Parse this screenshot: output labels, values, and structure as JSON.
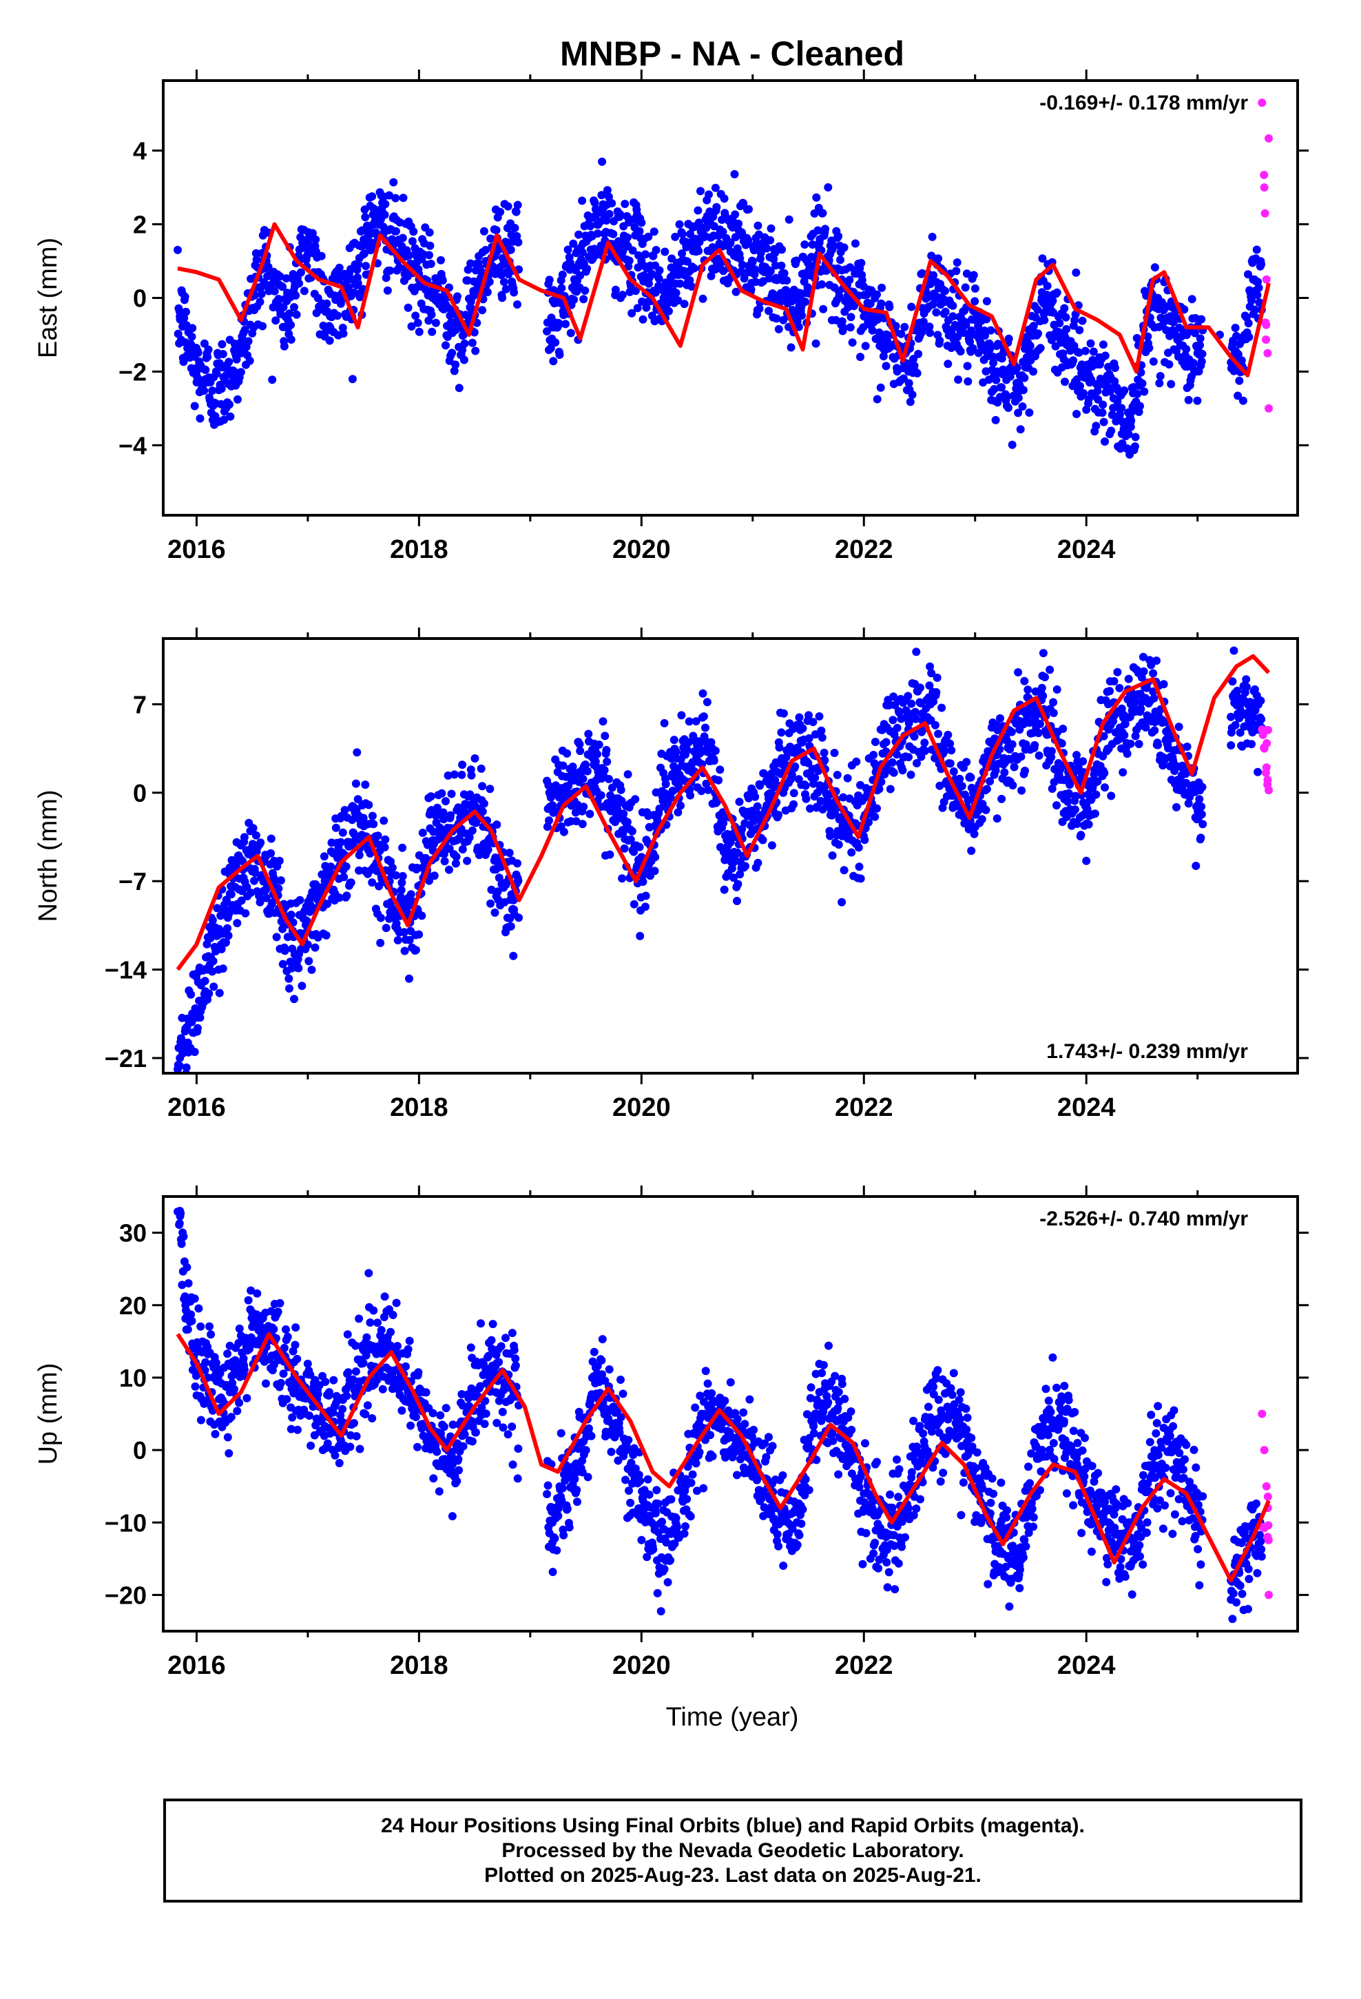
{
  "title": "MNBP  - NA - Cleaned",
  "xlabel": "Time (year)",
  "colors": {
    "final": "#0000ff",
    "rapid": "#ff22ff",
    "fit": "#ff0000",
    "axis": "#000000"
  },
  "caption": [
    "24 Hour Positions Using Final Orbits (blue) and Rapid Orbits (magenta).",
    "Processed by the Nevada Geodetic Laboratory.",
    "Plotted on 2025-Aug-23. Last data on 2025-Aug-21."
  ],
  "chart_data": [
    {
      "type": "scatter",
      "component": "east",
      "ylabel": "East (mm)",
      "rate": "-0.169+/- 0.178 mm/yr",
      "rate_position": "top-right",
      "xlim": [
        2015.7,
        2025.9
      ],
      "ylim": [
        -5.9,
        5.9
      ],
      "xticks": [
        2016,
        2018,
        2020,
        2022,
        2024
      ],
      "xtick_labels": [
        "2016",
        "2018",
        "2020",
        "2022",
        "2024"
      ],
      "yticks": [
        -4,
        -2,
        0,
        2,
        4
      ],
      "ytick_labels": [
        "−4",
        "−2",
        "0",
        "2",
        "4"
      ],
      "data_start": 2015.83,
      "data_end": 2025.64,
      "series": [
        {
          "kind": "final",
          "x": [
            2015.85,
            2016.0,
            2016.2,
            2016.4,
            2016.6,
            2016.8,
            2017.0,
            2017.2,
            2017.4,
            2017.6,
            2017.8,
            2018.0,
            2018.2,
            2018.4,
            2018.6,
            2018.8,
            2019.2,
            2019.4,
            2019.6,
            2019.8,
            2020.0,
            2020.2,
            2020.4,
            2020.6,
            2020.8,
            2021.0,
            2021.2,
            2021.4,
            2021.6,
            2021.8,
            2022.0,
            2022.2,
            2022.4,
            2022.6,
            2022.8,
            2023.0,
            2023.2,
            2023.4,
            2023.6,
            2023.8,
            2024.0,
            2024.2,
            2024.4,
            2024.6,
            2024.8,
            2025.0,
            2025.2,
            2025.4,
            2025.5
          ],
          "y": [
            -0.5,
            -2.0,
            -2.5,
            -1.5,
            1.0,
            -0.5,
            1.5,
            -0.5,
            0.5,
            2.0,
            1.5,
            0.5,
            0.0,
            -1.0,
            1.0,
            1.5,
            -0.8,
            0.5,
            2.0,
            1.5,
            1.0,
            0.0,
            1.0,
            2.0,
            1.5,
            1.0,
            0.5,
            0.0,
            1.5,
            0.5,
            -0.5,
            -1.0,
            -2.0,
            0.5,
            -0.5,
            -1.0,
            -2.0,
            -2.5,
            0.0,
            -1.0,
            -2.0,
            -2.5,
            -3.5,
            0.0,
            -1.0,
            -1.5,
            -1.0,
            -2.0,
            0.5
          ]
        },
        {
          "kind": "rapid",
          "x": [
            2025.58,
            2025.6,
            2025.62,
            2025.63,
            2025.64
          ],
          "y": [
            5.3,
            3.0,
            0.5,
            -1.5,
            -3.0
          ]
        },
        {
          "kind": "fit",
          "x": [
            2015.83,
            2016.0,
            2016.2,
            2016.4,
            2016.6,
            2016.7,
            2016.9,
            2017.1,
            2017.3,
            2017.45,
            2017.65,
            2017.85,
            2018.05,
            2018.25,
            2018.45,
            2018.7,
            2018.9,
            2019.1,
            2019.3,
            2019.45,
            2019.7,
            2019.9,
            2020.1,
            2020.35,
            2020.55,
            2020.7,
            2020.9,
            2021.1,
            2021.3,
            2021.45,
            2021.6,
            2021.8,
            2022.0,
            2022.2,
            2022.35,
            2022.6,
            2022.75,
            2022.95,
            2023.15,
            2023.35,
            2023.55,
            2023.7,
            2023.9,
            2024.1,
            2024.3,
            2024.45,
            2024.6,
            2024.7,
            2024.9,
            2025.1,
            2025.3,
            2025.45,
            2025.64
          ],
          "y": [
            0.8,
            0.7,
            0.5,
            -0.6,
            1.0,
            2.0,
            1.0,
            0.5,
            0.3,
            -0.8,
            1.7,
            1.0,
            0.4,
            0.2,
            -1.0,
            1.7,
            0.5,
            0.2,
            0.0,
            -1.1,
            1.5,
            0.5,
            0.0,
            -1.3,
            0.9,
            1.3,
            0.2,
            -0.1,
            -0.3,
            -1.4,
            1.2,
            0.4,
            -0.3,
            -0.4,
            -1.7,
            1.0,
            0.6,
            -0.2,
            -0.5,
            -1.8,
            0.5,
            0.9,
            -0.3,
            -0.6,
            -1.0,
            -2.0,
            0.5,
            0.7,
            -0.8,
            -0.8,
            -1.6,
            -2.1,
            0.4
          ]
        }
      ]
    },
    {
      "type": "scatter",
      "component": "north",
      "ylabel": "North (mm)",
      "rate": "1.743+/- 0.239 mm/yr",
      "rate_position": "bottom-right",
      "xlim": [
        2015.7,
        2025.9
      ],
      "ylim": [
        -22.2,
        12.2
      ],
      "xticks": [
        2016,
        2018,
        2020,
        2022,
        2024
      ],
      "xtick_labels": [
        "2016",
        "2018",
        "2020",
        "2022",
        "2024"
      ],
      "yticks": [
        -21,
        -14,
        -7,
        0,
        7
      ],
      "ytick_labels": [
        "−21",
        "−14",
        "−7",
        "0",
        "7"
      ],
      "data_start": 2015.83,
      "data_end": 2025.64,
      "series": [
        {
          "kind": "final",
          "x": [
            2015.85,
            2015.95,
            2016.1,
            2016.3,
            2016.5,
            2016.7,
            2016.9,
            2017.1,
            2017.3,
            2017.5,
            2017.7,
            2017.9,
            2018.1,
            2018.3,
            2018.5,
            2018.7,
            2018.85,
            2019.2,
            2019.4,
            2019.6,
            2019.8,
            2020.0,
            2020.2,
            2020.4,
            2020.6,
            2020.8,
            2021.0,
            2021.2,
            2021.4,
            2021.6,
            2021.8,
            2022.0,
            2022.2,
            2022.4,
            2022.6,
            2022.8,
            2023.0,
            2023.2,
            2023.4,
            2023.6,
            2023.8,
            2024.0,
            2024.2,
            2024.4,
            2024.6,
            2024.8,
            2025.0,
            2025.3,
            2025.5
          ],
          "y": [
            -21.0,
            -18.0,
            -14.0,
            -8.0,
            -5.0,
            -7.0,
            -13.0,
            -8.0,
            -5.0,
            -2.0,
            -7.0,
            -10.0,
            -4.0,
            -3.0,
            -1.0,
            -6.0,
            -8.5,
            -1.0,
            1.0,
            2.0,
            -2.0,
            -6.0,
            0.0,
            2.0,
            3.5,
            -5.0,
            -3.0,
            1.0,
            3.0,
            2.0,
            -3.0,
            -2.0,
            4.0,
            5.0,
            7.0,
            0.0,
            -1.0,
            3.0,
            5.0,
            6.5,
            1.0,
            -1.0,
            5.0,
            7.0,
            8.0,
            2.0,
            -1.0,
            6.0,
            6.0
          ]
        },
        {
          "kind": "rapid",
          "x": [
            2025.58,
            2025.6,
            2025.62,
            2025.63,
            2025.64
          ],
          "y": [
            5.0,
            3.5,
            2.0,
            1.0,
            0.2
          ]
        },
        {
          "kind": "fit",
          "x": [
            2015.83,
            2016.0,
            2016.2,
            2016.4,
            2016.55,
            2016.8,
            2016.95,
            2017.1,
            2017.3,
            2017.55,
            2017.75,
            2017.9,
            2018.1,
            2018.3,
            2018.5,
            2018.65,
            2018.9,
            2019.1,
            2019.3,
            2019.5,
            2019.7,
            2019.95,
            2020.15,
            2020.35,
            2020.55,
            2020.75,
            2020.95,
            2021.15,
            2021.35,
            2021.55,
            2021.75,
            2021.95,
            2022.15,
            2022.35,
            2022.55,
            2022.75,
            2022.95,
            2023.15,
            2023.35,
            2023.55,
            2023.75,
            2023.95,
            2024.15,
            2024.35,
            2024.6,
            2024.8,
            2024.95,
            2025.15,
            2025.35,
            2025.5,
            2025.64
          ],
          "y": [
            -14.0,
            -12.0,
            -7.5,
            -6.0,
            -5.0,
            -10.0,
            -12.0,
            -9.0,
            -5.5,
            -3.5,
            -8.0,
            -10.5,
            -5.5,
            -3.0,
            -1.5,
            -3.0,
            -8.5,
            -5.0,
            -1.0,
            0.5,
            -3.0,
            -7.0,
            -3.0,
            0.0,
            2.0,
            -1.0,
            -5.0,
            -1.5,
            2.5,
            3.5,
            -0.5,
            -3.5,
            2.0,
            4.5,
            5.5,
            1.5,
            -2.0,
            3.0,
            6.5,
            7.5,
            3.5,
            0.0,
            5.5,
            8.0,
            9.0,
            4.5,
            1.5,
            7.5,
            10.0,
            10.8,
            9.5
          ]
        }
      ]
    },
    {
      "type": "scatter",
      "component": "up",
      "ylabel": "Up (mm)",
      "rate": "-2.526+/- 0.740 mm/yr",
      "rate_position": "top-right",
      "xlim": [
        2015.7,
        2025.9
      ],
      "ylim": [
        -25,
        35
      ],
      "xticks": [
        2016,
        2018,
        2020,
        2022,
        2024
      ],
      "xtick_labels": [
        "2016",
        "2018",
        "2020",
        "2022",
        "2024"
      ],
      "yticks": [
        -20,
        -10,
        0,
        10,
        20,
        30
      ],
      "ytick_labels": [
        "−20",
        "−10",
        "0",
        "10",
        "20",
        "30"
      ],
      "data_start": 2015.83,
      "data_end": 2025.64,
      "series": [
        {
          "kind": "final",
          "x": [
            2015.85,
            2015.9,
            2016.1,
            2016.3,
            2016.5,
            2016.7,
            2016.9,
            2017.1,
            2017.3,
            2017.5,
            2017.7,
            2017.9,
            2018.1,
            2018.3,
            2018.5,
            2018.7,
            2018.85,
            2019.2,
            2019.4,
            2019.6,
            2019.8,
            2020.0,
            2020.2,
            2020.4,
            2020.6,
            2020.8,
            2021.0,
            2021.2,
            2021.4,
            2021.6,
            2021.8,
            2022.0,
            2022.2,
            2022.4,
            2022.6,
            2022.8,
            2023.0,
            2023.2,
            2023.4,
            2023.6,
            2023.8,
            2024.0,
            2024.2,
            2024.4,
            2024.6,
            2024.8,
            2025.0,
            2025.3,
            2025.5
          ],
          "y": [
            33.0,
            20.0,
            10.0,
            8.0,
            17.0,
            15.0,
            8.0,
            6.0,
            4.0,
            12.0,
            14.0,
            8.0,
            2.0,
            -2.0,
            8.0,
            12.0,
            8.0,
            -10.0,
            -4.0,
            10.0,
            3.0,
            -8.0,
            -15.0,
            -4.0,
            6.0,
            2.0,
            -2.0,
            -8.0,
            -10.0,
            8.0,
            3.0,
            -6.0,
            -12.0,
            -8.0,
            4.0,
            6.0,
            -4.0,
            -12.0,
            -16.0,
            2.0,
            4.0,
            -6.0,
            -10.0,
            -14.0,
            -2.0,
            0.0,
            -10.0,
            -18.0,
            -12.0
          ]
        },
        {
          "kind": "rapid",
          "x": [
            2025.58,
            2025.6,
            2025.62,
            2025.63,
            2025.64
          ],
          "y": [
            5.0,
            0.0,
            -5.0,
            -12.0,
            -20.0
          ]
        },
        {
          "kind": "fit",
          "x": [
            2015.83,
            2016.0,
            2016.2,
            2016.4,
            2016.65,
            2016.9,
            2017.1,
            2017.3,
            2017.55,
            2017.75,
            2017.95,
            2018.1,
            2018.25,
            2018.5,
            2018.75,
            2018.95,
            2019.1,
            2019.25,
            2019.5,
            2019.7,
            2019.9,
            2020.1,
            2020.25,
            2020.5,
            2020.7,
            2020.9,
            2021.1,
            2021.25,
            2021.5,
            2021.7,
            2021.9,
            2022.1,
            2022.25,
            2022.5,
            2022.7,
            2022.9,
            2023.1,
            2023.25,
            2023.5,
            2023.7,
            2023.9,
            2024.1,
            2024.25,
            2024.5,
            2024.7,
            2024.9,
            2025.1,
            2025.3,
            2025.5,
            2025.64
          ],
          "y": [
            16.0,
            12.0,
            5.0,
            8.0,
            16.0,
            10.0,
            6.0,
            2.0,
            10.0,
            13.5,
            8.0,
            3.0,
            0.0,
            6.0,
            11.0,
            6.0,
            -2.0,
            -3.0,
            4.0,
            8.5,
            4.0,
            -3.0,
            -5.0,
            1.0,
            5.5,
            2.0,
            -4.0,
            -8.0,
            -2.0,
            3.5,
            1.0,
            -6.0,
            -10.0,
            -4.0,
            1.0,
            -2.0,
            -9.0,
            -13.0,
            -6.0,
            -2.0,
            -3.0,
            -10.0,
            -15.5,
            -8.0,
            -4.0,
            -6.0,
            -12.0,
            -18.0,
            -12.0,
            -7.0
          ]
        }
      ]
    }
  ]
}
